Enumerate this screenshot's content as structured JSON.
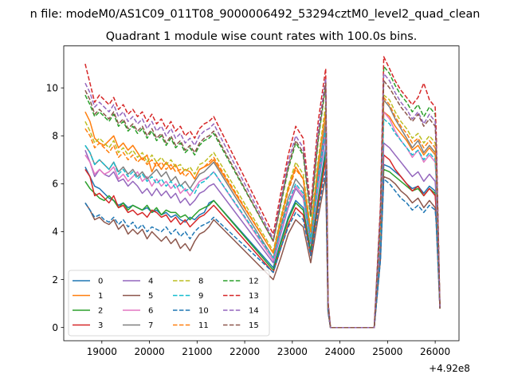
{
  "figure": {
    "suptitle": "n file: modeM0/AS1C09_011T08_9000006492_53294cztM0_level2_quad_clean",
    "offset_label": "+4.92e8"
  },
  "chart_data": {
    "type": "line",
    "title": "Quadrant 1 module wise count rates with 100.0s bins.",
    "xlabel": "",
    "ylabel": "",
    "xlim": [
      18200,
      26500
    ],
    "ylim": [
      -0.55,
      11.75
    ],
    "xticks": [
      19000,
      20000,
      21000,
      22000,
      23000,
      24000,
      25000,
      26000
    ],
    "yticks": [
      0,
      2,
      4,
      6,
      8,
      10
    ],
    "x_offset": 492000000,
    "grid": false,
    "legend": {
      "placement": "lower-left",
      "ncol": 4
    },
    "series": [
      {
        "name": "0",
        "color": "#1f77b4",
        "dash": "solid",
        "segA": [
          6.7,
          6.3,
          5.9,
          5.8,
          5.6,
          5.4,
          5.3,
          5.1,
          5.2,
          5.0,
          5.1,
          5.0,
          4.9,
          5.0,
          4.8,
          4.9,
          4.7,
          4.8,
          4.6,
          4.7,
          4.5,
          4.4,
          4.6,
          4.5,
          4.7,
          4.8,
          5.2,
          5.3
        ],
        "segB": [
          2.5,
          3.6,
          4.6,
          5.3,
          5.0,
          3.2,
          5.4,
          7.5
        ],
        "segC": [
          6.8,
          6.7,
          6.5,
          6.3,
          6.0,
          5.8,
          5.9,
          5.6,
          5.9,
          5.7
        ]
      },
      {
        "name": "1",
        "color": "#ff7f0e",
        "dash": "solid",
        "segA": [
          9.0,
          8.6,
          7.9,
          7.7,
          7.6,
          7.8,
          8.0,
          7.5,
          7.7,
          7.4,
          7.6,
          7.3,
          7.0,
          7.2,
          6.5,
          6.9,
          6.6,
          6.9,
          6.6,
          6.8,
          6.4,
          6.6,
          6.5,
          6.2,
          6.6,
          6.7,
          6.8,
          7.0
        ],
        "segB": [
          3.1,
          4.5,
          5.8,
          6.7,
          6.2,
          4.0,
          6.8,
          9.0
        ],
        "segC": [
          9.0,
          8.8,
          8.4,
          8.1,
          7.8,
          7.4,
          7.6,
          7.2,
          7.5,
          7.2
        ]
      },
      {
        "name": "2",
        "color": "#2ca02c",
        "dash": "solid",
        "segA": [
          6.1,
          5.8,
          5.6,
          5.4,
          5.3,
          5.5,
          5.3,
          5.0,
          5.2,
          4.9,
          5.1,
          5.0,
          4.9,
          5.1,
          4.8,
          5.0,
          4.7,
          4.9,
          4.8,
          4.8,
          4.6,
          4.7,
          4.5,
          4.7,
          4.9,
          5.0,
          5.1,
          5.3
        ],
        "segB": [
          2.4,
          3.5,
          4.5,
          5.2,
          4.9,
          3.2,
          5.3,
          7.2
        ],
        "segC": [
          6.6,
          6.5,
          6.3,
          6.1,
          5.9,
          5.7,
          5.8,
          5.5,
          5.8,
          5.6
        ]
      },
      {
        "name": "3",
        "color": "#d62728",
        "dash": "solid",
        "segA": [
          6.6,
          6.3,
          5.5,
          5.6,
          5.4,
          5.2,
          5.5,
          5.0,
          5.1,
          4.8,
          4.9,
          4.7,
          4.8,
          4.6,
          4.9,
          4.8,
          4.6,
          4.7,
          4.4,
          4.6,
          4.3,
          4.5,
          4.2,
          4.4,
          4.6,
          4.7,
          4.9,
          5.1
        ],
        "segB": [
          2.3,
          3.3,
          4.3,
          5.0,
          4.7,
          3.0,
          5.1,
          7.0
        ],
        "segC": [
          7.2,
          7.0,
          6.6,
          6.3,
          6.0,
          5.7,
          5.9,
          5.5,
          5.8,
          5.5
        ]
      },
      {
        "name": "4",
        "color": "#9467bd",
        "dash": "solid",
        "segA": [
          7.4,
          6.9,
          6.3,
          6.6,
          6.4,
          6.3,
          6.5,
          6.1,
          6.2,
          5.9,
          6.1,
          5.9,
          5.6,
          5.8,
          5.5,
          5.8,
          5.5,
          5.7,
          5.4,
          5.6,
          5.2,
          5.4,
          5.1,
          5.3,
          5.6,
          5.7,
          5.9,
          6.0
        ],
        "segB": [
          2.7,
          3.9,
          5.0,
          5.8,
          5.4,
          3.5,
          5.9,
          8.0
        ],
        "segC": [
          7.7,
          7.5,
          7.2,
          6.9,
          6.6,
          6.3,
          6.5,
          6.1,
          6.4,
          6.1
        ]
      },
      {
        "name": "5",
        "color": "#8c564b",
        "dash": "solid",
        "segA": [
          5.2,
          4.9,
          4.5,
          4.6,
          4.4,
          4.3,
          4.5,
          4.1,
          4.3,
          3.9,
          4.1,
          3.9,
          4.1,
          3.7,
          4.0,
          3.8,
          3.6,
          3.8,
          3.5,
          3.7,
          3.3,
          3.5,
          3.2,
          3.6,
          3.9,
          4.0,
          4.2,
          4.5
        ],
        "segB": [
          2.0,
          2.9,
          3.9,
          4.5,
          4.2,
          2.7,
          4.6,
          6.3
        ],
        "segC": [
          6.3,
          6.2,
          6.0,
          5.7,
          5.5,
          5.2,
          5.4,
          5.0,
          5.3,
          5.0
        ]
      },
      {
        "name": "6",
        "color": "#e377c2",
        "dash": "solid",
        "segA": [
          7.2,
          6.9,
          6.4,
          6.6,
          6.4,
          6.5,
          6.7,
          6.2,
          6.4,
          6.1,
          6.3,
          6.5,
          6.1,
          6.3,
          5.9,
          6.2,
          5.9,
          6.1,
          5.8,
          6.0,
          5.6,
          5.8,
          5.5,
          5.8,
          6.1,
          6.2,
          6.3,
          6.5
        ],
        "segB": [
          2.8,
          4.0,
          5.1,
          5.9,
          5.5,
          3.6,
          6.1,
          8.4
        ],
        "segC": [
          9.0,
          8.7,
          8.2,
          7.8,
          7.5,
          7.1,
          7.4,
          6.9,
          7.2,
          6.9
        ]
      },
      {
        "name": "7",
        "color": "#7f7f7f",
        "dash": "solid",
        "segA": [
          7.6,
          7.3,
          6.8,
          7.0,
          6.8,
          6.6,
          6.9,
          6.5,
          6.7,
          6.4,
          6.6,
          6.3,
          6.5,
          6.2,
          6.4,
          6.6,
          6.3,
          6.5,
          6.1,
          6.3,
          5.9,
          6.1,
          5.8,
          6.1,
          6.4,
          6.5,
          6.7,
          6.9
        ],
        "segB": [
          2.9,
          4.2,
          5.4,
          6.2,
          5.8,
          3.7,
          6.4,
          8.6
        ],
        "segC": [
          9.5,
          9.2,
          8.7,
          8.3,
          7.9,
          7.5,
          7.8,
          7.3,
          7.6,
          7.3
        ]
      },
      {
        "name": "8",
        "color": "#bcbd22",
        "dash": "dashed",
        "segA": [
          8.6,
          8.2,
          7.7,
          7.9,
          7.7,
          7.5,
          7.8,
          7.3,
          7.5,
          7.2,
          7.4,
          7.1,
          7.3,
          6.9,
          7.2,
          6.9,
          7.1,
          6.8,
          7.0,
          6.7,
          6.8,
          6.5,
          6.7,
          6.4,
          6.8,
          6.9,
          7.1,
          7.3
        ],
        "segB": [
          3.2,
          4.6,
          5.9,
          6.9,
          6.4,
          4.1,
          7.0,
          9.3
        ],
        "segC": [
          9.7,
          9.5,
          9.0,
          8.6,
          8.3,
          7.9,
          8.1,
          7.7,
          8.0,
          7.7
        ]
      },
      {
        "name": "9",
        "color": "#17becf",
        "dash": "dashed",
        "segA": [
          7.6,
          7.3,
          6.8,
          7.0,
          6.8,
          6.6,
          6.9,
          6.4,
          6.6,
          6.3,
          6.5,
          6.2,
          6.4,
          6.1,
          6.3,
          6.0,
          6.2,
          5.9,
          6.1,
          5.8,
          6.0,
          5.7,
          5.8,
          5.6,
          6.0,
          6.1,
          6.3,
          6.5
        ],
        "segB": [
          2.9,
          4.1,
          5.2,
          6.0,
          5.6,
          3.6,
          6.2,
          8.3
        ],
        "segC": [
          8.7,
          8.5,
          8.1,
          7.8,
          7.5,
          7.2,
          7.4,
          7.0,
          7.3,
          7.0
        ]
      },
      {
        "name": "10",
        "color": "#1f77b4",
        "dash": "dashed",
        "segA": [
          5.2,
          4.9,
          4.6,
          4.7,
          4.5,
          4.4,
          4.6,
          4.3,
          4.5,
          4.2,
          4.4,
          4.1,
          4.3,
          4.0,
          4.2,
          4.1,
          4.0,
          4.2,
          3.9,
          4.1,
          3.8,
          4.0,
          3.7,
          4.0,
          4.2,
          4.3,
          4.4,
          4.6
        ],
        "segB": [
          2.3,
          3.3,
          4.2,
          4.8,
          4.5,
          3.0,
          4.9,
          6.6
        ],
        "segC": [
          6.2,
          6.0,
          5.7,
          5.4,
          5.2,
          4.9,
          5.1,
          4.8,
          5.1,
          4.9
        ]
      },
      {
        "name": "11",
        "color": "#ff7f0e",
        "dash": "dashed",
        "segA": [
          8.3,
          8.0,
          7.5,
          7.7,
          7.5,
          7.3,
          7.6,
          7.1,
          7.3,
          7.0,
          7.2,
          6.9,
          7.1,
          6.8,
          7.0,
          6.7,
          6.9,
          6.6,
          6.8,
          6.5,
          6.6,
          6.3,
          6.5,
          6.2,
          6.6,
          6.7,
          6.9,
          7.1
        ],
        "segB": [
          3.1,
          4.4,
          5.7,
          6.6,
          6.2,
          4.0,
          6.8,
          9.0
        ],
        "segC": [
          9.6,
          9.3,
          8.8,
          8.4,
          8.1,
          7.7,
          7.9,
          7.5,
          7.8,
          7.5
        ]
      },
      {
        "name": "12",
        "color": "#2ca02c",
        "dash": "dashed",
        "segA": [
          9.7,
          9.3,
          8.8,
          9.0,
          8.8,
          8.6,
          8.9,
          8.4,
          8.6,
          8.2,
          8.4,
          8.1,
          8.3,
          7.9,
          8.2,
          7.8,
          8.0,
          7.6,
          7.9,
          7.5,
          7.7,
          7.3,
          7.5,
          7.2,
          7.6,
          7.8,
          7.9,
          8.1
        ],
        "segB": [
          3.6,
          5.1,
          6.6,
          7.7,
          7.2,
          4.6,
          7.8,
          10.1
        ],
        "segC": [
          10.9,
          10.6,
          10.1,
          9.7,
          9.4,
          9.0,
          9.3,
          8.8,
          9.2,
          8.9
        ]
      },
      {
        "name": "13",
        "color": "#d62728",
        "dash": "dashed",
        "segA": [
          11.0,
          10.2,
          9.4,
          9.7,
          9.5,
          9.3,
          9.6,
          9.1,
          9.3,
          8.9,
          9.1,
          8.8,
          9.0,
          8.6,
          8.9,
          8.5,
          8.7,
          8.3,
          8.6,
          8.2,
          8.4,
          8.0,
          8.2,
          7.9,
          8.3,
          8.5,
          8.6,
          8.8
        ],
        "segB": [
          3.9,
          5.6,
          7.2,
          8.4,
          7.9,
          5.0,
          8.6,
          10.8
        ],
        "segC": [
          11.3,
          10.8,
          10.3,
          9.9,
          9.6,
          9.3,
          9.6,
          10.2,
          9.5,
          9.2
        ]
      },
      {
        "name": "14",
        "color": "#9467bd",
        "dash": "dashed",
        "segA": [
          10.2,
          9.8,
          9.2,
          9.4,
          9.2,
          9.0,
          9.3,
          8.8,
          9.0,
          8.6,
          8.8,
          8.5,
          8.7,
          8.3,
          8.6,
          8.2,
          8.4,
          8.0,
          8.3,
          7.9,
          8.1,
          7.7,
          7.9,
          7.6,
          8.0,
          8.2,
          8.3,
          8.5
        ],
        "segB": [
          3.7,
          5.3,
          6.9,
          8.0,
          7.5,
          4.8,
          8.2,
          10.4
        ],
        "segC": [
          10.6,
          10.3,
          9.8,
          9.4,
          9.1,
          8.7,
          9.0,
          8.5,
          8.9,
          8.6
        ]
      },
      {
        "name": "15",
        "color": "#8c564b",
        "dash": "dashed",
        "segA": [
          9.9,
          9.5,
          8.9,
          9.1,
          8.9,
          8.7,
          9.0,
          8.5,
          8.7,
          8.3,
          8.5,
          8.2,
          8.4,
          8.0,
          8.3,
          7.9,
          8.1,
          7.7,
          8.0,
          7.6,
          7.8,
          7.4,
          7.6,
          7.3,
          7.7,
          7.9,
          8.0,
          8.2
        ],
        "segB": [
          3.6,
          5.2,
          6.7,
          7.8,
          7.3,
          4.7,
          7.9,
          10.2
        ],
        "segC": [
          10.3,
          10.0,
          9.6,
          9.2,
          8.9,
          8.6,
          8.9,
          8.4,
          8.7,
          8.4
        ]
      }
    ],
    "gap": {
      "x_end_a": 22600,
      "x_drop": 23800,
      "x_rise": 24720,
      "level": 0.0
    }
  }
}
